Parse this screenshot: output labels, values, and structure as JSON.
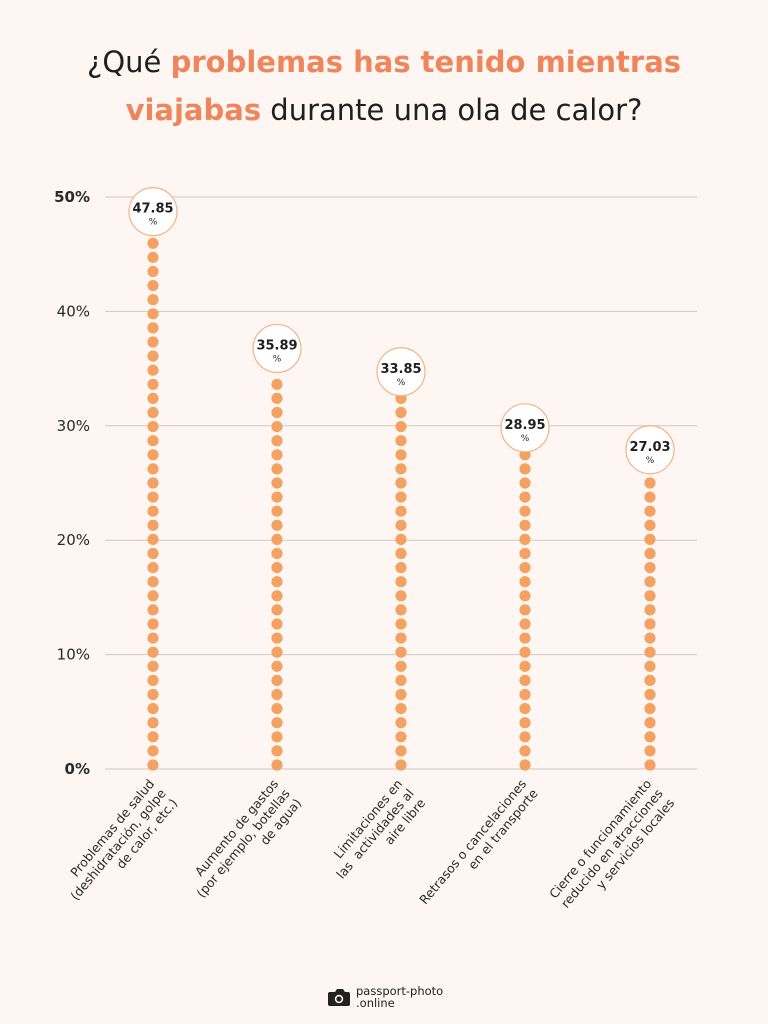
{
  "title": {
    "part1": "¿Qué ",
    "highlight1": "problemas has tenido mientras",
    "highlight2": "viajabas",
    "part2": " durante una ola de calor?"
  },
  "chart_data": {
    "type": "bar",
    "style": "dotted-lollipop",
    "categories": [
      [
        "Problemas de salud",
        "(deshidratación, golpe",
        "de calor, etc.)"
      ],
      [
        "Aumento de gastos",
        "(por ejemplo, botellas",
        "de agua)"
      ],
      [
        "Limitaciones en",
        "las  actividades al",
        "aire libre"
      ],
      [
        "Retrasos o cancelaciones",
        "en el transporte"
      ],
      [
        "Cierre o funcionamiento",
        "reducido en atracciones",
        "y servicios locales"
      ]
    ],
    "values": [
      47.85,
      35.89,
      33.85,
      28.95,
      27.03
    ],
    "value_labels": [
      "47.85",
      "35.89",
      "33.85",
      "28.95",
      "27.03"
    ],
    "value_suffix": "%",
    "ylim": [
      0,
      50
    ],
    "yticks": [
      "0%",
      "10%",
      "20%",
      "30%",
      "40%",
      "50%"
    ],
    "grid": true,
    "colors": {
      "dot": "#f4a261",
      "bubble_border": "#f4b482",
      "grid": "#cfc9c5",
      "accent": "#f0855c"
    }
  },
  "footer": {
    "logo_line1": "passport-photo",
    "logo_line2": ".online",
    "logo_icon": "camera-icon"
  }
}
